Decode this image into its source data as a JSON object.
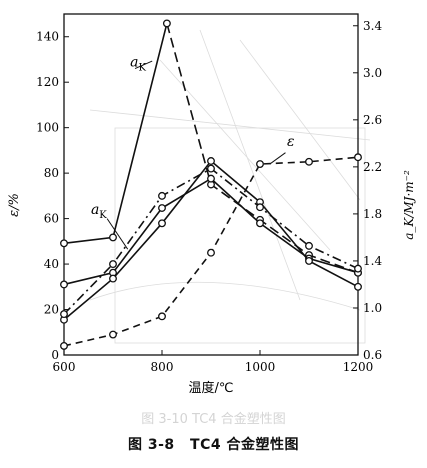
{
  "chart_data": {
    "type": "line",
    "xlabel": "温度/℃",
    "ylabel_left": "ε/%",
    "ylabel_right": "a_K/MJ·m⁻²",
    "xlim": [
      600,
      1200
    ],
    "ylim_left": [
      0,
      150
    ],
    "ylim_right": [
      0.6,
      3.5
    ],
    "x_ticks": [
      "600",
      "800",
      "1000",
      "1200"
    ],
    "y_ticks_left": [
      "0",
      "20",
      "40",
      "60",
      "80",
      "100",
      "120",
      "140"
    ],
    "y_ticks_right": [
      "0.6",
      "1.0",
      "1.4",
      "1.8",
      "2.2",
      "2.6",
      "3.0",
      "3.4"
    ],
    "series": [
      {
        "name": "a_K",
        "axis": "right",
        "style": "solid-dash",
        "x": [
          600,
          700,
          810,
          900,
          1000,
          1100,
          1200
        ],
        "y": [
          1.55,
          1.6,
          3.42,
          2.05,
          1.75,
          1.45,
          1.3
        ]
      },
      {
        "name": "a_K",
        "axis": "right",
        "style": "solid",
        "x": [
          600,
          700,
          800,
          900,
          1000,
          1100,
          1200
        ],
        "y": [
          1.2,
          1.3,
          1.85,
          2.1,
          1.72,
          1.42,
          1.3
        ]
      },
      {
        "name": "",
        "axis": "right",
        "style": "solid",
        "x": [
          600,
          700,
          800,
          900,
          1000,
          1100,
          1200
        ],
        "y": [
          0.9,
          1.25,
          1.72,
          2.25,
          1.9,
          1.4,
          1.18
        ]
      },
      {
        "name": "",
        "axis": "left",
        "style": "dash-dot",
        "x": [
          600,
          700,
          800,
          900,
          1000,
          1100,
          1200
        ],
        "y": [
          18,
          40,
          70,
          82,
          65,
          48,
          38
        ]
      },
      {
        "name": "ε",
        "axis": "left",
        "style": "dashed",
        "x": [
          600,
          700,
          800,
          900,
          1000,
          1100,
          1200
        ],
        "y": [
          4,
          9,
          17,
          45,
          84,
          85,
          87
        ]
      }
    ],
    "annotations": [
      {
        "text": "a",
        "sub": "K",
        "x": 735,
        "y_left": 127
      },
      {
        "text": "a",
        "sub": "K",
        "x": 655,
        "y_left": 62
      },
      {
        "text": "ε",
        "x": 1055,
        "y_left": 92
      }
    ],
    "grid": false
  },
  "caption": {
    "number": "图 3-8",
    "title": "TC4 合金塑性图"
  },
  "bleed_through": "图 3-10 TC4 合金塑性图",
  "colors": {
    "ink": "#111111",
    "ghost": "#d4d4d4"
  }
}
